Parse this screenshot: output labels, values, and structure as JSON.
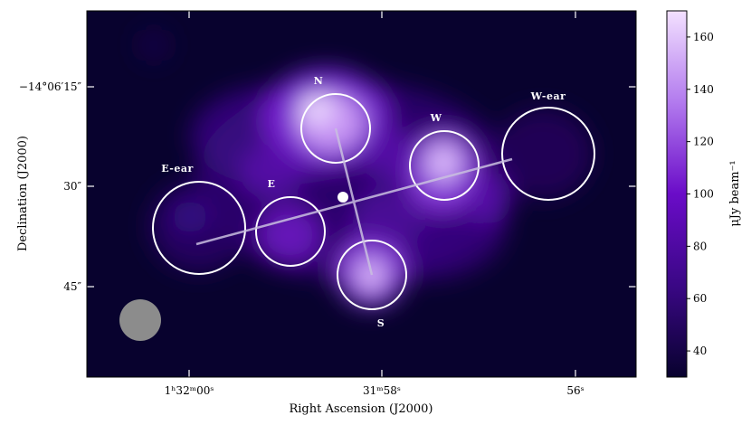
{
  "chart_data": {
    "type": "heatmap",
    "xlabel": "Right Ascension (J2000)",
    "ylabel": "Declination (J2000)",
    "x_ticks": [
      {
        "label": "1ʰ32ᵐ00ˢ"
      },
      {
        "label": "31ᵐ58ˢ"
      },
      {
        "label": "56ˢ"
      }
    ],
    "y_ticks": [
      {
        "label": "−14°06′15″"
      },
      {
        "label": "30″"
      },
      {
        "label": "45″"
      }
    ],
    "colorbar": {
      "label": "μJy beam⁻¹",
      "range": [
        30,
        170
      ],
      "ticks": [
        40,
        60,
        80,
        100,
        120,
        140,
        160
      ],
      "low_color": "#08022e",
      "mid_color": "#6a0cc8",
      "high_color": "#f3e1ff"
    },
    "regions": [
      {
        "name": "N"
      },
      {
        "name": "W"
      },
      {
        "name": "W-ear"
      },
      {
        "name": "E-ear"
      },
      {
        "name": "E"
      },
      {
        "name": "S"
      }
    ],
    "colors": {
      "background": "#08022e",
      "circle": "#ffffff",
      "beam": "#8c8c8c"
    }
  }
}
